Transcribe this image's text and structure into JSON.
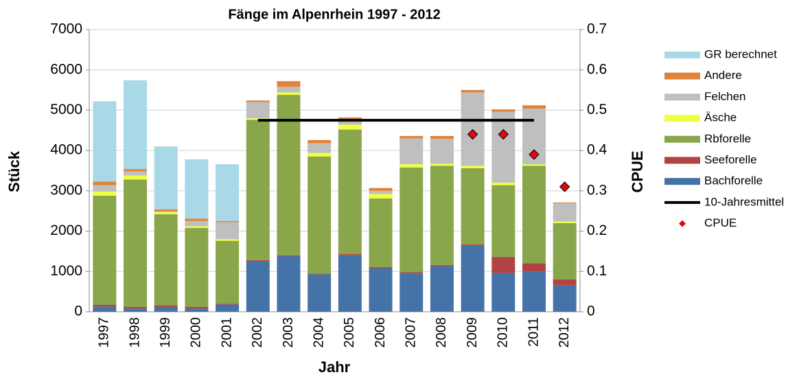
{
  "chart_data": {
    "type": "bar",
    "stacked": true,
    "title": "Fänge im Alpenrhein  1997 - 2012",
    "x_label": "Jahr",
    "y_label": "Stück",
    "y2_label": "CPUE",
    "categories": [
      "1997",
      "1998",
      "1999",
      "2000",
      "2001",
      "2002",
      "2003",
      "2004",
      "2005",
      "2006",
      "2007",
      "2008",
      "2009",
      "2010",
      "2011",
      "2012"
    ],
    "ylim": [
      0,
      7000
    ],
    "yticks": [
      0,
      1000,
      2000,
      3000,
      4000,
      5000,
      6000,
      7000
    ],
    "y2lim": [
      0,
      0.7
    ],
    "y2ticks": [
      0,
      0.1,
      0.2,
      0.3,
      0.4,
      0.5,
      0.6,
      0.7
    ],
    "grid": true,
    "legend": "right",
    "series": [
      {
        "name": "Bachforelle",
        "type": "bar",
        "color": "#4573a8",
        "values": [
          130,
          80,
          120,
          80,
          180,
          1250,
          1380,
          930,
          1400,
          1080,
          950,
          1130,
          1640,
          960,
          1000,
          650
        ]
      },
      {
        "name": "Seeforelle",
        "type": "bar",
        "color": "#b04444",
        "values": [
          40,
          40,
          40,
          40,
          20,
          30,
          20,
          20,
          30,
          30,
          30,
          30,
          30,
          400,
          200,
          150
        ]
      },
      {
        "name": "Rbforelle",
        "type": "bar",
        "color": "#8aa64a",
        "values": [
          2710,
          3160,
          2260,
          1960,
          1560,
          3480,
          3980,
          2900,
          3090,
          1700,
          2600,
          2460,
          1890,
          1780,
          2420,
          1400
        ]
      },
      {
        "name": "Äsche",
        "type": "bar",
        "color": "#eeff44",
        "values": [
          100,
          100,
          50,
          40,
          40,
          40,
          60,
          90,
          120,
          110,
          80,
          50,
          60,
          60,
          40,
          40
        ]
      },
      {
        "name": "Felchen",
        "type": "bar",
        "color": "#bfbfbf",
        "values": [
          160,
          100,
          20,
          130,
          420,
          400,
          140,
          240,
          120,
          80,
          640,
          620,
          1820,
          1760,
          1380,
          450
        ]
      },
      {
        "name": "Andere",
        "type": "bar",
        "color": "#e0843c",
        "values": [
          90,
          60,
          50,
          60,
          30,
          40,
          140,
          80,
          60,
          70,
          60,
          70,
          60,
          60,
          80,
          20
        ]
      },
      {
        "name": "GR berechnet",
        "type": "bar",
        "color": "#a9d8e6",
        "values": [
          1990,
          2200,
          1560,
          1470,
          1410,
          0,
          0,
          0,
          0,
          0,
          0,
          0,
          0,
          0,
          0,
          0
        ]
      },
      {
        "name": "10-Jahresmittel",
        "type": "line",
        "axis": "y2",
        "color": "#000000",
        "values": [
          null,
          null,
          null,
          null,
          null,
          0.475,
          0.475,
          0.475,
          0.475,
          0.475,
          0.475,
          0.475,
          0.475,
          0.475,
          0.475,
          null
        ]
      },
      {
        "name": "CPUE",
        "type": "scatter",
        "axis": "y2",
        "color": "#e30613",
        "values": [
          null,
          null,
          null,
          null,
          null,
          null,
          null,
          null,
          null,
          null,
          null,
          null,
          0.44,
          0.44,
          0.39,
          0.31
        ]
      }
    ]
  }
}
